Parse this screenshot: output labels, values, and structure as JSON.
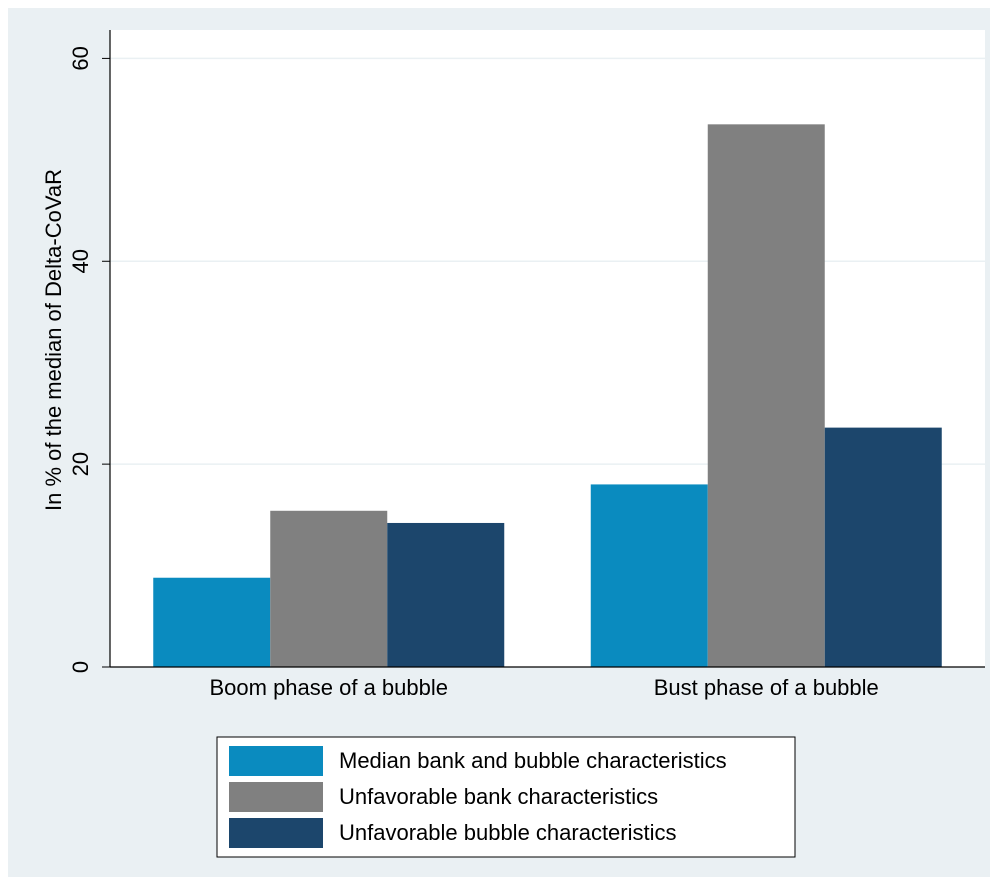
{
  "chart_data": {
    "type": "bar",
    "y_label": "In % of the median of Delta-CoVaR",
    "categories": [
      "Boom phase of a bubble",
      "Bust phase of a bubble"
    ],
    "series": [
      {
        "name": "Median bank and bubble characteristics",
        "color": "#0a8bbf",
        "values": [
          8.8,
          18.0
        ]
      },
      {
        "name": "Unfavorable bank characteristics",
        "color": "#808080",
        "values": [
          15.4,
          53.5
        ]
      },
      {
        "name": "Unfavorable bubble characteristics",
        "color": "#1c466c",
        "values": [
          14.2,
          23.6
        ]
      }
    ],
    "ylim": [
      0,
      62.8
    ],
    "yticks": [
      0,
      20,
      40,
      60
    ],
    "grid": true,
    "legend": "bottom"
  }
}
